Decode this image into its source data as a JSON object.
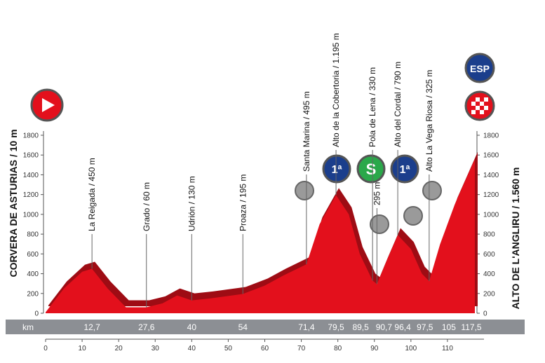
{
  "chart_data": {
    "type": "area",
    "start_label": "CORVERA DE ASTURIAS / 10 m",
    "finish_label": "ALTO DE L'ANGLIRU / 1.560 m",
    "km_label": "km",
    "color": "#e3101c",
    "x": [
      0,
      5,
      10,
      12.7,
      17,
      22,
      27.6,
      32,
      36,
      40,
      45,
      54,
      60,
      65,
      71.4,
      75,
      79.5,
      83,
      86,
      89.5,
      90.7,
      93,
      96.4,
      100,
      103,
      105,
      108,
      112,
      117.5
    ],
    "values": [
      10,
      250,
      420,
      450,
      250,
      60,
      60,
      100,
      180,
      130,
      150,
      195,
      280,
      380,
      495,
      900,
      1195,
      1000,
      600,
      330,
      295,
      500,
      790,
      650,
      400,
      325,
      700,
      1100,
      1560
    ],
    "xlim": [
      0,
      120
    ],
    "xticks": [
      0,
      10,
      20,
      30,
      40,
      50,
      60,
      70,
      80,
      90,
      100,
      110
    ],
    "ylim": [
      0,
      1800
    ],
    "yticks": [
      0,
      200,
      400,
      600,
      800,
      1000,
      1200,
      1400,
      1600,
      1800
    ],
    "markers": [
      {
        "value": 12.7,
        "label": "12,7",
        "place": "La Reigada / 450 m"
      },
      {
        "value": 27.6,
        "label": "27,6",
        "place": "Grado / 60 m"
      },
      {
        "value": 40,
        "label": "40",
        "place": "Udrión / 130 m"
      },
      {
        "value": 54,
        "label": "54",
        "place": "Proaza / 195 m"
      },
      {
        "value": 71.4,
        "label": "71,4",
        "place": "Santa Marina / 495 m"
      },
      {
        "value": 79.5,
        "label": "79,5",
        "place": "Alto de la Cobertoria / 1.195 m"
      },
      {
        "value": 89.5,
        "label": "89,5",
        "place": "Pola de Lena / 330 m"
      },
      {
        "value": 90.7,
        "label": "90,7",
        "place": "295 m"
      },
      {
        "value": 96.4,
        "label": "96,4",
        "place": "Alto del Cordal / 790 m"
      },
      {
        "value": 97.5,
        "label": "97,5"
      },
      {
        "value": 105,
        "label": "105",
        "place": "Alto La Vega Riosa / 325 m"
      },
      {
        "value": 117.5,
        "label": "117,5"
      }
    ],
    "badges": [
      "1ª",
      "S",
      "1ª",
      "ESP"
    ]
  }
}
